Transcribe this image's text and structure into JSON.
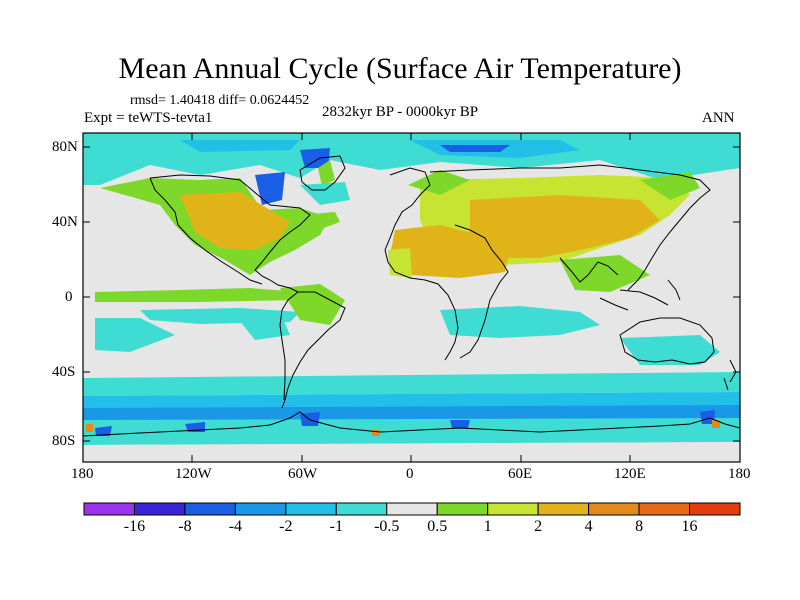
{
  "title": "Mean Annual Cycle (Surface Air Temperature)",
  "stats": "rmsd= 1.40418 diff= 0.0624452",
  "experiment": "Expt = teWTS-tevta1",
  "period": "2832kyr BP - 0000kyr BP",
  "season": "ANN",
  "lat_labels": [
    "80N",
    "40N",
    "0",
    "40S",
    "80S"
  ],
  "lon_labels": [
    "180",
    "120W",
    "60W",
    "0",
    "60E",
    "120E",
    "180"
  ],
  "colorbar": {
    "labels": [
      "-16",
      "-8",
      "-4",
      "-2",
      "-1",
      "-0.5",
      "0.5",
      "1",
      "2",
      "4",
      "8",
      "16"
    ],
    "colors": [
      "#9a34f0",
      "#3a24d8",
      "#1a5ee6",
      "#1a98e8",
      "#22c0e8",
      "#3edcd2",
      "#e6e6e6",
      "#7ed82a",
      "#c8e432",
      "#e0b418",
      "#e48a18",
      "#e86a18",
      "#e43e10"
    ]
  },
  "colors": {
    "ocean_neutral": "#e6e6e6",
    "coast": "#000000"
  }
}
